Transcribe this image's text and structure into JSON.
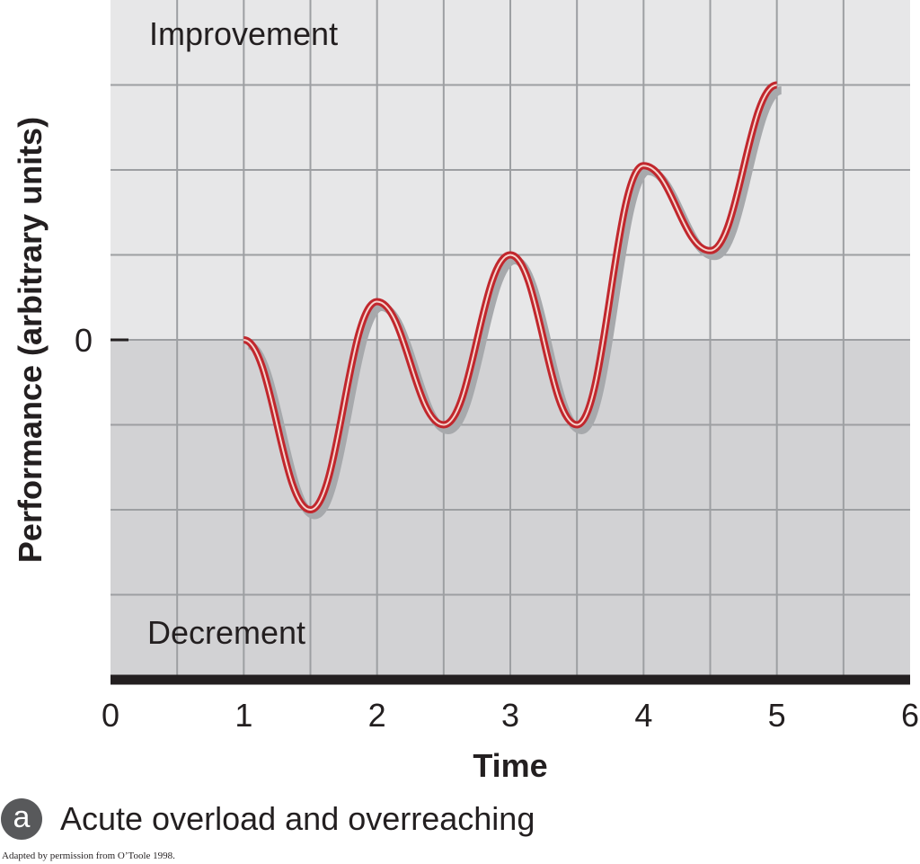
{
  "chart_data": {
    "type": "line",
    "title": "",
    "xlabel": "Time",
    "ylabel": "Performance (arbitrary units)",
    "xlim": [
      0,
      6
    ],
    "x_ticks": [
      "0",
      "1",
      "2",
      "3",
      "4",
      "5",
      "6"
    ],
    "ylim": [
      -4,
      4
    ],
    "y_ticks": [
      "0"
    ],
    "grid": true,
    "regions": {
      "above_zero": "Improvement",
      "below_zero": "Decrement"
    },
    "series": [
      {
        "color": "#c1272d",
        "x": [
          1,
          1.5,
          2,
          2.5,
          3,
          3.5,
          4,
          4.5,
          5
        ],
        "y": [
          0,
          -2,
          0.45,
          -1,
          1,
          -1,
          2.05,
          1.05,
          3
        ]
      }
    ]
  },
  "panel": {
    "letter": "a",
    "caption": "Acute overload and overreaching"
  },
  "credit": "Adapted by permission from O’Toole 1998.",
  "colors": {
    "improvement_bg": "#e7e7e8",
    "decrement_bg": "#d2d2d4",
    "grid": "#9d9fa2",
    "axis": "#231f20",
    "line": "#c1272d",
    "line_highlight": "#f6d6cf",
    "shadow": "#a7a9ac"
  }
}
